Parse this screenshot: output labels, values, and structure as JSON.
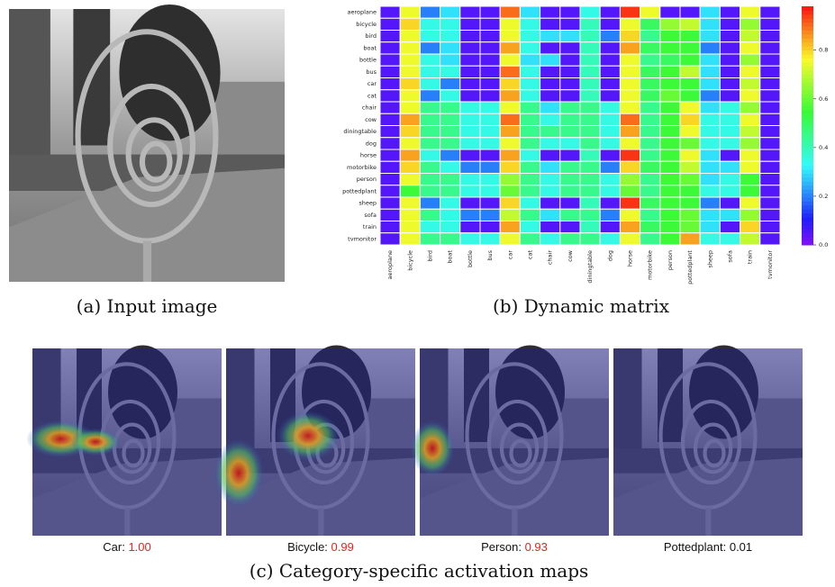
{
  "panel_a": {
    "caption": "(a) Input image"
  },
  "panel_b": {
    "caption": "(b) Dynamic matrix",
    "chart_data": {
      "type": "heatmap",
      "colormap": "rainbow",
      "rows": [
        "aeroplane",
        "bicycle",
        "bird",
        "boat",
        "bottle",
        "bus",
        "car",
        "cat",
        "chair",
        "cow",
        "diningtable",
        "dog",
        "horse",
        "motorbike",
        "person",
        "pottedplant",
        "sheep",
        "sofa",
        "train",
        "tvmonitor"
      ],
      "columns": [
        "aeroplane",
        "bicycle",
        "bird",
        "boat",
        "bottle",
        "bus",
        "car",
        "cat",
        "chair",
        "cow",
        "diningtable",
        "dog",
        "horse",
        "motorbike",
        "person",
        "pottedplant",
        "sheep",
        "sofa",
        "train",
        "tvmonitor"
      ],
      "values": [
        [
          0.05,
          0.75,
          0.2,
          0.3,
          0.05,
          0.05,
          0.9,
          0.3,
          0.05,
          0.05,
          0.35,
          0.05,
          0.95,
          0.75,
          0.05,
          0.05,
          0.3,
          0.05,
          0.75,
          0.05
        ],
        [
          0.05,
          0.8,
          0.35,
          0.35,
          0.05,
          0.05,
          0.75,
          0.35,
          0.05,
          0.05,
          0.4,
          0.05,
          0.75,
          0.5,
          0.65,
          0.7,
          0.3,
          0.05,
          0.65,
          0.05
        ],
        [
          0.05,
          0.75,
          0.35,
          0.35,
          0.05,
          0.05,
          0.75,
          0.35,
          0.3,
          0.3,
          0.4,
          0.2,
          0.8,
          0.45,
          0.55,
          0.55,
          0.3,
          0.05,
          0.7,
          0.05
        ],
        [
          0.05,
          0.75,
          0.2,
          0.3,
          0.05,
          0.05,
          0.85,
          0.35,
          0.05,
          0.05,
          0.4,
          0.05,
          0.85,
          0.5,
          0.55,
          0.55,
          0.2,
          0.05,
          0.75,
          0.05
        ],
        [
          0.05,
          0.75,
          0.35,
          0.3,
          0.05,
          0.05,
          0.75,
          0.3,
          0.3,
          0.05,
          0.4,
          0.05,
          0.75,
          0.45,
          0.5,
          0.55,
          0.3,
          0.05,
          0.65,
          0.05
        ],
        [
          0.05,
          0.75,
          0.35,
          0.35,
          0.05,
          0.05,
          0.9,
          0.35,
          0.05,
          0.05,
          0.4,
          0.05,
          0.75,
          0.5,
          0.55,
          0.7,
          0.3,
          0.05,
          0.75,
          0.05
        ],
        [
          0.05,
          0.8,
          0.35,
          0.2,
          0.05,
          0.05,
          0.8,
          0.35,
          0.05,
          0.05,
          0.4,
          0.05,
          0.75,
          0.5,
          0.55,
          0.55,
          0.3,
          0.05,
          0.7,
          0.05
        ],
        [
          0.05,
          0.75,
          0.2,
          0.35,
          0.05,
          0.05,
          0.85,
          0.35,
          0.05,
          0.05,
          0.4,
          0.05,
          0.75,
          0.5,
          0.6,
          0.55,
          0.2,
          0.05,
          0.75,
          0.05
        ],
        [
          0.05,
          0.75,
          0.45,
          0.45,
          0.35,
          0.35,
          0.75,
          0.45,
          0.3,
          0.45,
          0.45,
          0.35,
          0.75,
          0.45,
          0.55,
          0.75,
          0.3,
          0.35,
          0.65,
          0.05
        ],
        [
          0.05,
          0.85,
          0.45,
          0.45,
          0.35,
          0.35,
          0.9,
          0.45,
          0.35,
          0.45,
          0.45,
          0.35,
          0.9,
          0.45,
          0.55,
          0.8,
          0.35,
          0.35,
          0.75,
          0.05
        ],
        [
          0.05,
          0.8,
          0.45,
          0.45,
          0.35,
          0.35,
          0.85,
          0.45,
          0.45,
          0.45,
          0.45,
          0.35,
          0.85,
          0.45,
          0.55,
          0.75,
          0.35,
          0.35,
          0.7,
          0.05
        ],
        [
          0.05,
          0.75,
          0.45,
          0.45,
          0.35,
          0.35,
          0.75,
          0.45,
          0.35,
          0.35,
          0.45,
          0.35,
          0.75,
          0.45,
          0.55,
          0.6,
          0.35,
          0.35,
          0.65,
          0.05
        ],
        [
          0.05,
          0.85,
          0.35,
          0.2,
          0.05,
          0.05,
          0.85,
          0.35,
          0.05,
          0.05,
          0.4,
          0.05,
          0.95,
          0.45,
          0.55,
          0.75,
          0.3,
          0.05,
          0.75,
          0.05
        ],
        [
          0.05,
          0.8,
          0.45,
          0.35,
          0.2,
          0.2,
          0.8,
          0.45,
          0.3,
          0.45,
          0.45,
          0.2,
          0.8,
          0.5,
          0.55,
          0.7,
          0.3,
          0.3,
          0.75,
          0.05
        ],
        [
          0.05,
          0.75,
          0.45,
          0.45,
          0.35,
          0.35,
          0.65,
          0.45,
          0.35,
          0.45,
          0.45,
          0.35,
          0.65,
          0.45,
          0.55,
          0.6,
          0.3,
          0.35,
          0.55,
          0.05
        ],
        [
          0.05,
          0.55,
          0.45,
          0.45,
          0.35,
          0.35,
          0.6,
          0.45,
          0.35,
          0.45,
          0.45,
          0.35,
          0.6,
          0.45,
          0.55,
          0.55,
          0.35,
          0.35,
          0.55,
          0.05
        ],
        [
          0.05,
          0.75,
          0.2,
          0.35,
          0.05,
          0.05,
          0.8,
          0.35,
          0.05,
          0.05,
          0.4,
          0.05,
          0.95,
          0.5,
          0.55,
          0.55,
          0.2,
          0.05,
          0.75,
          0.05
        ],
        [
          0.05,
          0.75,
          0.45,
          0.35,
          0.2,
          0.2,
          0.7,
          0.45,
          0.3,
          0.45,
          0.45,
          0.2,
          0.75,
          0.45,
          0.55,
          0.6,
          0.3,
          0.3,
          0.65,
          0.05
        ],
        [
          0.05,
          0.75,
          0.35,
          0.35,
          0.05,
          0.05,
          0.85,
          0.35,
          0.05,
          0.05,
          0.4,
          0.05,
          0.85,
          0.5,
          0.55,
          0.6,
          0.3,
          0.05,
          0.8,
          0.05
        ],
        [
          0.05,
          0.75,
          0.45,
          0.45,
          0.35,
          0.35,
          0.75,
          0.45,
          0.35,
          0.45,
          0.45,
          0.35,
          0.75,
          0.45,
          0.55,
          0.85,
          0.35,
          0.35,
          0.7,
          0.05
        ]
      ],
      "clim": [
        0,
        0.98
      ],
      "cticks": [
        {
          "value": 0,
          "label": "0.0"
        },
        0.2,
        0.4,
        0.6,
        0.8
      ]
    }
  },
  "panel_c": {
    "caption": "(c) Category-specific activation maps",
    "maps": [
      {
        "label": "Car:",
        "score": 1.0,
        "score_label": "1.00",
        "score_color": "#e8231f"
      },
      {
        "label": "Bicycle:",
        "score": 0.99,
        "score_color": "#e8231f"
      },
      {
        "label": "Person:",
        "score": 0.93,
        "score_color": "#e8231f"
      },
      {
        "label": "Pottedplant:",
        "score": 0.01,
        "score_color": "#111111"
      }
    ]
  }
}
